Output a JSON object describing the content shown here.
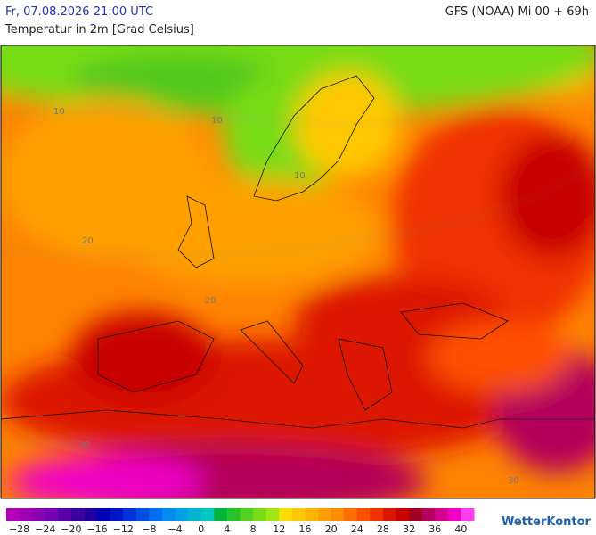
{
  "header": {
    "valid_time": "Fr, 07.08.2026 21:00 UTC",
    "model_run": "GFS (NOAA) Mi 00 + 69h",
    "parameter": "Temperatur in 2m [Grad Celsius]"
  },
  "map": {
    "contour_labels": [
      "10",
      "10",
      "10",
      "20",
      "20",
      "30",
      "30"
    ]
  },
  "legend": {
    "labels": [
      "−28",
      "−24",
      "−20",
      "−16",
      "−12",
      "−8",
      "−4",
      "0",
      "4",
      "8",
      "12",
      "16",
      "20",
      "24",
      "28",
      "32",
      "36",
      "40"
    ],
    "colors": [
      "#b400b4",
      "#a000b4",
      "#8c00b4",
      "#7800b4",
      "#5a00aa",
      "#3c00a0",
      "#1e00a0",
      "#0000b4",
      "#0014c8",
      "#0032dc",
      "#0050e6",
      "#006ef0",
      "#008cf0",
      "#00a0e6",
      "#00b4d2",
      "#00c8be",
      "#00b43c",
      "#28c328",
      "#50d21e",
      "#78dc14",
      "#a0e614",
      "#ffdc00",
      "#ffc800",
      "#ffb400",
      "#ffa000",
      "#ff8c00",
      "#ff6e00",
      "#ff5000",
      "#f03200",
      "#dc1400",
      "#c80000",
      "#a0001e",
      "#b4005a",
      "#d2008c",
      "#f000c8",
      "#ff3cf0"
    ]
  },
  "branding": {
    "logo": "WetterKontor"
  }
}
